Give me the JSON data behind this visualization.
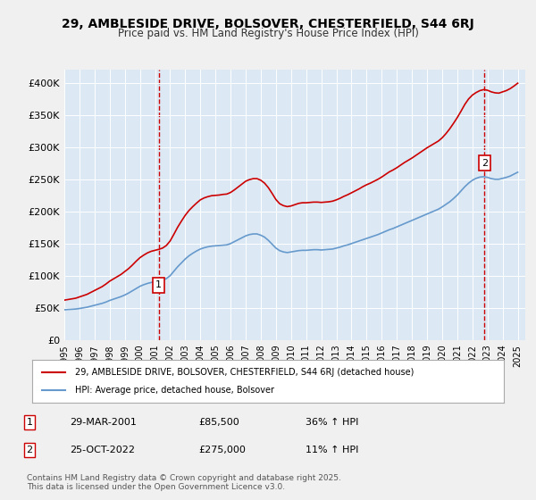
{
  "title": "29, AMBLESIDE DRIVE, BOLSOVER, CHESTERFIELD, S44 6RJ",
  "subtitle": "Price paid vs. HM Land Registry's House Price Index (HPI)",
  "background_color": "#dce9f5",
  "plot_bg_color": "#dce9f5",
  "ylabel_color": "#222222",
  "ylim": [
    0,
    420000
  ],
  "yticks": [
    0,
    50000,
    100000,
    150000,
    200000,
    250000,
    300000,
    350000,
    400000
  ],
  "ytick_labels": [
    "£0",
    "£50K",
    "£100K",
    "£150K",
    "£200K",
    "£250K",
    "£300K",
    "£350K",
    "£400K"
  ],
  "xlim_start": 1995.0,
  "xlim_end": 2025.5,
  "marker1_x": 2001.24,
  "marker1_y": 85500,
  "marker1_label": "1",
  "marker2_x": 2022.81,
  "marker2_y": 275000,
  "marker2_label": "2",
  "annotation1_date": "29-MAR-2001",
  "annotation1_price": "£85,500",
  "annotation1_hpi": "36% ↑ HPI",
  "annotation2_date": "25-OCT-2022",
  "annotation2_price": "£275,000",
  "annotation2_hpi": "11% ↑ HPI",
  "legend_line1": "29, AMBLESIDE DRIVE, BOLSOVER, CHESTERFIELD, S44 6RJ (detached house)",
  "legend_line2": "HPI: Average price, detached house, Bolsover",
  "footer": "Contains HM Land Registry data © Crown copyright and database right 2025.\nThis data is licensed under the Open Government Licence v3.0.",
  "red_color": "#cc0000",
  "blue_color": "#6699cc",
  "hpi_years": [
    1995.0,
    1995.25,
    1995.5,
    1995.75,
    1996.0,
    1996.25,
    1996.5,
    1996.75,
    1997.0,
    1997.25,
    1997.5,
    1997.75,
    1998.0,
    1998.25,
    1998.5,
    1998.75,
    1999.0,
    1999.25,
    1999.5,
    1999.75,
    2000.0,
    2000.25,
    2000.5,
    2000.75,
    2001.0,
    2001.25,
    2001.5,
    2001.75,
    2002.0,
    2002.25,
    2002.5,
    2002.75,
    2003.0,
    2003.25,
    2003.5,
    2003.75,
    2004.0,
    2004.25,
    2004.5,
    2004.75,
    2005.0,
    2005.25,
    2005.5,
    2005.75,
    2006.0,
    2006.25,
    2006.5,
    2006.75,
    2007.0,
    2007.25,
    2007.5,
    2007.75,
    2008.0,
    2008.25,
    2008.5,
    2008.75,
    2009.0,
    2009.25,
    2009.5,
    2009.75,
    2010.0,
    2010.25,
    2010.5,
    2010.75,
    2011.0,
    2011.25,
    2011.5,
    2011.75,
    2012.0,
    2012.25,
    2012.5,
    2012.75,
    2013.0,
    2013.25,
    2013.5,
    2013.75,
    2014.0,
    2014.25,
    2014.5,
    2014.75,
    2015.0,
    2015.25,
    2015.5,
    2015.75,
    2016.0,
    2016.25,
    2016.5,
    2016.75,
    2017.0,
    2017.25,
    2017.5,
    2017.75,
    2018.0,
    2018.25,
    2018.5,
    2018.75,
    2019.0,
    2019.25,
    2019.5,
    2019.75,
    2020.0,
    2020.25,
    2020.5,
    2020.75,
    2021.0,
    2021.25,
    2021.5,
    2021.75,
    2022.0,
    2022.25,
    2022.5,
    2022.75,
    2023.0,
    2023.25,
    2023.5,
    2023.75,
    2024.0,
    2024.25,
    2024.5,
    2024.75,
    2025.0
  ],
  "hpi_values": [
    47000,
    47500,
    47800,
    48200,
    49000,
    50000,
    51000,
    52500,
    54000,
    55500,
    57000,
    59000,
    61500,
    63500,
    65500,
    67500,
    70000,
    73000,
    76500,
    80000,
    83500,
    86000,
    88000,
    89500,
    90500,
    91500,
    93000,
    95500,
    100000,
    107000,
    114000,
    120000,
    126000,
    131000,
    135000,
    138500,
    141500,
    143500,
    145000,
    146000,
    146500,
    147000,
    147500,
    148000,
    150000,
    153000,
    156000,
    159000,
    162000,
    164000,
    165000,
    165000,
    163000,
    160000,
    155000,
    149000,
    143000,
    139000,
    137000,
    136000,
    137000,
    138000,
    139000,
    139500,
    139500,
    140000,
    140500,
    140500,
    140000,
    140500,
    141000,
    141500,
    143000,
    144500,
    146500,
    148000,
    150000,
    152000,
    154000,
    156000,
    158000,
    160000,
    162000,
    164000,
    166500,
    169000,
    171500,
    173500,
    176000,
    178500,
    181000,
    183500,
    186000,
    188500,
    191000,
    193500,
    196000,
    198500,
    201000,
    203500,
    207000,
    211000,
    215000,
    220000,
    225500,
    232000,
    238500,
    244000,
    248500,
    251500,
    253500,
    254000,
    253000,
    251000,
    250000,
    250000,
    251500,
    253000,
    255000,
    258000,
    261000
  ],
  "red_years": [
    1995.0,
    1995.25,
    1995.5,
    1995.75,
    1996.0,
    1996.25,
    1996.5,
    1996.75,
    1997.0,
    1997.25,
    1997.5,
    1997.75,
    1998.0,
    1998.25,
    1998.5,
    1998.75,
    1999.0,
    1999.25,
    1999.5,
    1999.75,
    2000.0,
    2000.25,
    2000.5,
    2000.75,
    2001.0,
    2001.25,
    2001.5,
    2001.75,
    2002.0,
    2002.25,
    2002.5,
    2002.75,
    2003.0,
    2003.25,
    2003.5,
    2003.75,
    2004.0,
    2004.25,
    2004.5,
    2004.75,
    2005.0,
    2005.25,
    2005.5,
    2005.75,
    2006.0,
    2006.25,
    2006.5,
    2006.75,
    2007.0,
    2007.25,
    2007.5,
    2007.75,
    2008.0,
    2008.25,
    2008.5,
    2008.75,
    2009.0,
    2009.25,
    2009.5,
    2009.75,
    2010.0,
    2010.25,
    2010.5,
    2010.75,
    2011.0,
    2011.25,
    2011.5,
    2011.75,
    2012.0,
    2012.25,
    2012.5,
    2012.75,
    2013.0,
    2013.25,
    2013.5,
    2013.75,
    2014.0,
    2014.25,
    2014.5,
    2014.75,
    2015.0,
    2015.25,
    2015.5,
    2015.75,
    2016.0,
    2016.25,
    2016.5,
    2016.75,
    2017.0,
    2017.25,
    2017.5,
    2017.75,
    2018.0,
    2018.25,
    2018.5,
    2018.75,
    2019.0,
    2019.25,
    2019.5,
    2019.75,
    2020.0,
    2020.25,
    2020.5,
    2020.75,
    2021.0,
    2021.25,
    2021.5,
    2021.75,
    2022.0,
    2022.25,
    2022.5,
    2022.75,
    2023.0,
    2023.25,
    2023.5,
    2023.75,
    2024.0,
    2024.25,
    2024.5,
    2024.75,
    2025.0
  ],
  "red_values": [
    62000,
    63000,
    64000,
    65000,
    67000,
    69000,
    71000,
    74000,
    77000,
    80000,
    83000,
    87000,
    91500,
    95000,
    98500,
    102000,
    106500,
    111000,
    116500,
    122500,
    128000,
    132000,
    135500,
    138000,
    139500,
    141000,
    143000,
    147000,
    154000,
    164500,
    175500,
    185000,
    194000,
    201500,
    207500,
    213000,
    218000,
    221000,
    223000,
    224500,
    225000,
    225500,
    226500,
    227000,
    229500,
    233500,
    238000,
    242500,
    247000,
    249500,
    251000,
    251000,
    248500,
    244000,
    237000,
    228000,
    218500,
    212000,
    209000,
    207500,
    208500,
    210500,
    212500,
    213500,
    213500,
    214000,
    214500,
    214500,
    214000,
    214500,
    215000,
    216000,
    218000,
    220500,
    223500,
    226000,
    229000,
    232000,
    235000,
    238500,
    241500,
    244000,
    247000,
    250000,
    253500,
    257500,
    261500,
    264500,
    268000,
    272000,
    276000,
    279500,
    283000,
    287000,
    291000,
    295000,
    299000,
    302500,
    306000,
    309500,
    314500,
    321000,
    328500,
    337000,
    346000,
    356000,
    366500,
    375000,
    381000,
    385000,
    388000,
    389500,
    388500,
    386000,
    384500,
    384000,
    386000,
    388000,
    391000,
    395000,
    399500
  ]
}
